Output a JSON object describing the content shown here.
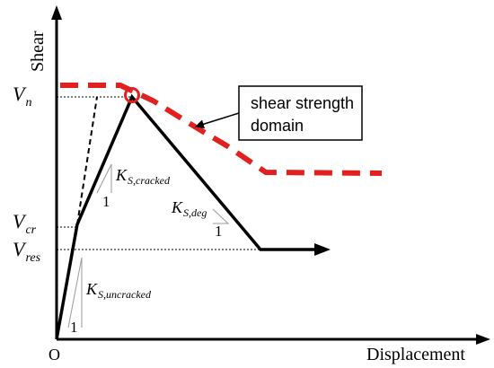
{
  "axes": {
    "y_label": "Shear",
    "x_label": "Displacement",
    "origin_label": "O"
  },
  "levels": {
    "vn": {
      "base": "V",
      "sub": "n"
    },
    "vcr": {
      "base": "V",
      "sub": "cr"
    },
    "vres": {
      "base": "V",
      "sub": "res"
    }
  },
  "stiffness": {
    "uncracked": {
      "base": "K",
      "sub": "S,uncracked",
      "run": "1"
    },
    "cracked": {
      "base": "K",
      "sub": "S,cracked",
      "run": "1"
    },
    "degrading": {
      "base": "K",
      "sub": "S,deg",
      "run": "1"
    }
  },
  "callout": {
    "line1": "shear strength",
    "line2": "domain"
  },
  "colors": {
    "backbone": "#000000",
    "strength_domain": "#e32020",
    "triangle": "#9a9a9a",
    "guide": "#000000"
  }
}
